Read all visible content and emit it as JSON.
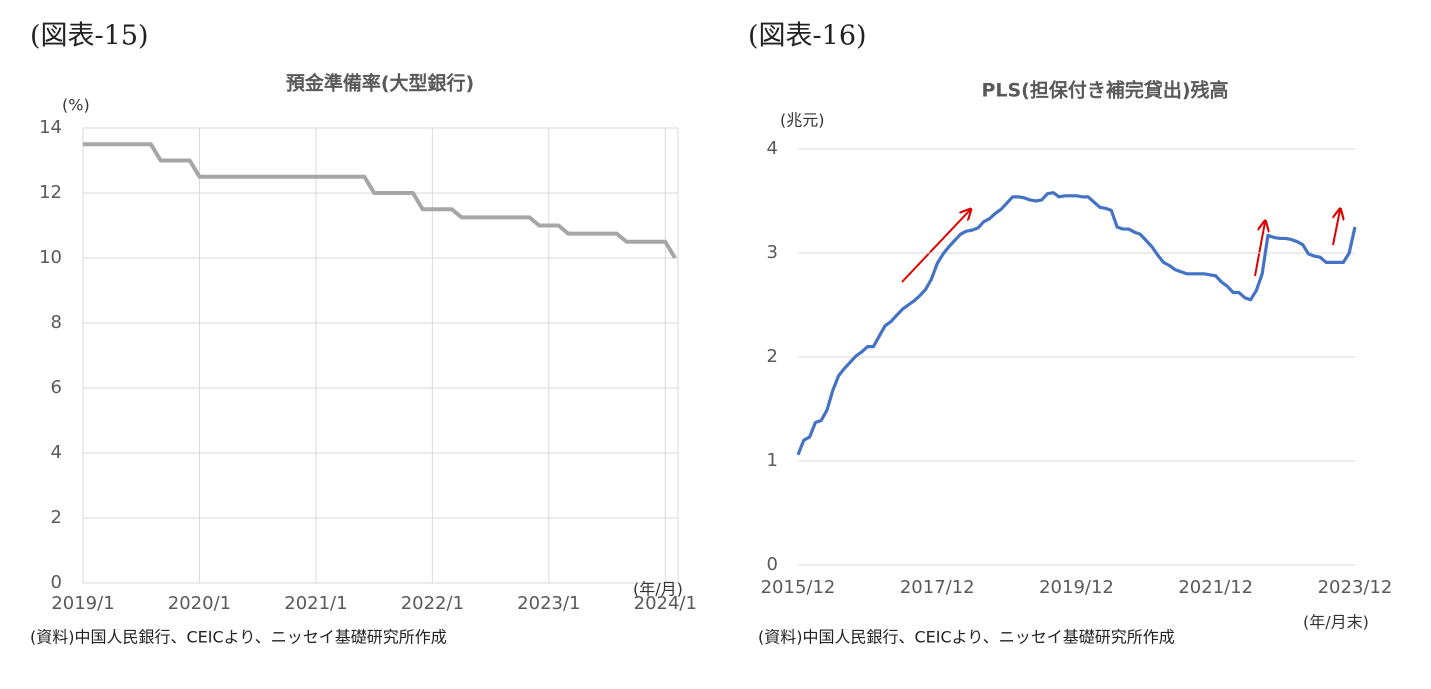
{
  "chart_data": [
    {
      "type": "line",
      "figure_label": "(図表-15)",
      "title": "預金準備率(大型銀行)",
      "y_label": "(%)",
      "x_label": "(年/月)",
      "source": "(資料)中国人民銀行、CEICより、ニッセイ基礎研究所作成",
      "categories": [
        "2019/1",
        null,
        null,
        null,
        null,
        null,
        null,
        null,
        null,
        null,
        null,
        null,
        "2020/1",
        null,
        null,
        null,
        null,
        null,
        null,
        null,
        null,
        null,
        null,
        null,
        "2021/1",
        null,
        null,
        null,
        null,
        null,
        null,
        null,
        null,
        null,
        null,
        null,
        "2022/1",
        null,
        null,
        null,
        null,
        null,
        null,
        null,
        null,
        null,
        null,
        null,
        "2023/1",
        null,
        null,
        null,
        null,
        null,
        null,
        null,
        null,
        null,
        null,
        null,
        "2024/1",
        null
      ],
      "series": [
        {
          "color": "#a6a6a6",
          "values": [
            13.5,
            13.5,
            13.5,
            13.5,
            13.5,
            13.5,
            13.5,
            13.5,
            13,
            13,
            13,
            13,
            12.5,
            12.5,
            12.5,
            12.5,
            12.5,
            12.5,
            12.5,
            12.5,
            12.5,
            12.5,
            12.5,
            12.5,
            12.5,
            12.5,
            12.5,
            12.5,
            12.5,
            12.5,
            12,
            12,
            12,
            12,
            12,
            11.5,
            11.5,
            11.5,
            11.5,
            11.25,
            11.25,
            11.25,
            11.25,
            11.25,
            11.25,
            11.25,
            11.25,
            11,
            11,
            11,
            10.75,
            10.75,
            10.75,
            10.75,
            10.75,
            10.75,
            10.5,
            10.5,
            10.5,
            10.5,
            10.5,
            10
          ]
        }
      ],
      "ylim": [
        0,
        14
      ],
      "yticks": [
        0,
        2,
        4,
        6,
        8,
        10,
        12,
        14
      ],
      "grid": true,
      "xgrid": true
    },
    {
      "type": "line",
      "figure_label": "(図表-16)",
      "title": "PLS(担保付き補完貸出)残高",
      "y_label": "(兆元)",
      "x_label": "(年/月末)",
      "source": "(資料)中国人民銀行、CEICより、ニッセイ基礎研究所作成",
      "categories": [
        "2015/12",
        null,
        null,
        null,
        null,
        null,
        null,
        null,
        null,
        null,
        null,
        null,
        null,
        null,
        null,
        null,
        null,
        null,
        null,
        null,
        null,
        null,
        null,
        null,
        "2017/12",
        null,
        null,
        null,
        null,
        null,
        null,
        null,
        null,
        null,
        null,
        null,
        null,
        null,
        null,
        null,
        null,
        null,
        null,
        null,
        null,
        null,
        null,
        null,
        "2019/12",
        null,
        null,
        null,
        null,
        null,
        null,
        null,
        null,
        null,
        null,
        null,
        null,
        null,
        null,
        null,
        null,
        null,
        null,
        null,
        null,
        null,
        null,
        null,
        "2021/12",
        null,
        null,
        null,
        null,
        null,
        null,
        null,
        null,
        null,
        null,
        null,
        null,
        null,
        null,
        null,
        null,
        null,
        null,
        null,
        null,
        null,
        null,
        null,
        "2023/12"
      ],
      "series": [
        {
          "color": "#4472c4",
          "values": [
            1.06,
            1.2,
            1.23,
            1.37,
            1.39,
            1.49,
            1.68,
            1.82,
            1.89,
            1.95,
            2.01,
            2.05,
            2.1,
            2.1,
            2.2,
            2.3,
            2.34,
            2.4,
            2.46,
            2.5,
            2.54,
            2.59,
            2.65,
            2.75,
            2.9,
            2.99,
            3.06,
            3.12,
            3.18,
            3.21,
            3.22,
            3.24,
            3.3,
            3.33,
            3.38,
            3.42,
            3.48,
            3.54,
            3.54,
            3.53,
            3.51,
            3.5,
            3.51,
            3.57,
            3.58,
            3.54,
            3.55,
            3.55,
            3.55,
            3.54,
            3.54,
            3.49,
            3.44,
            3.43,
            3.41,
            3.25,
            3.23,
            3.23,
            3.2,
            3.18,
            3.12,
            3.06,
            2.98,
            2.91,
            2.88,
            2.84,
            2.82,
            2.8,
            2.8,
            2.8,
            2.8,
            2.79,
            2.78,
            2.72,
            2.68,
            2.62,
            2.62,
            2.57,
            2.55,
            2.64,
            2.8,
            3.17,
            3.15,
            3.14,
            3.14,
            3.13,
            3.11,
            3.08,
            2.99,
            2.97,
            2.96,
            2.91,
            2.91,
            2.91,
            2.91,
            3.0,
            3.25
          ]
        }
      ],
      "ylim": [
        0,
        4
      ],
      "yticks": [
        0,
        1,
        2,
        3,
        4
      ],
      "grid": true,
      "xgrid": false
    }
  ]
}
